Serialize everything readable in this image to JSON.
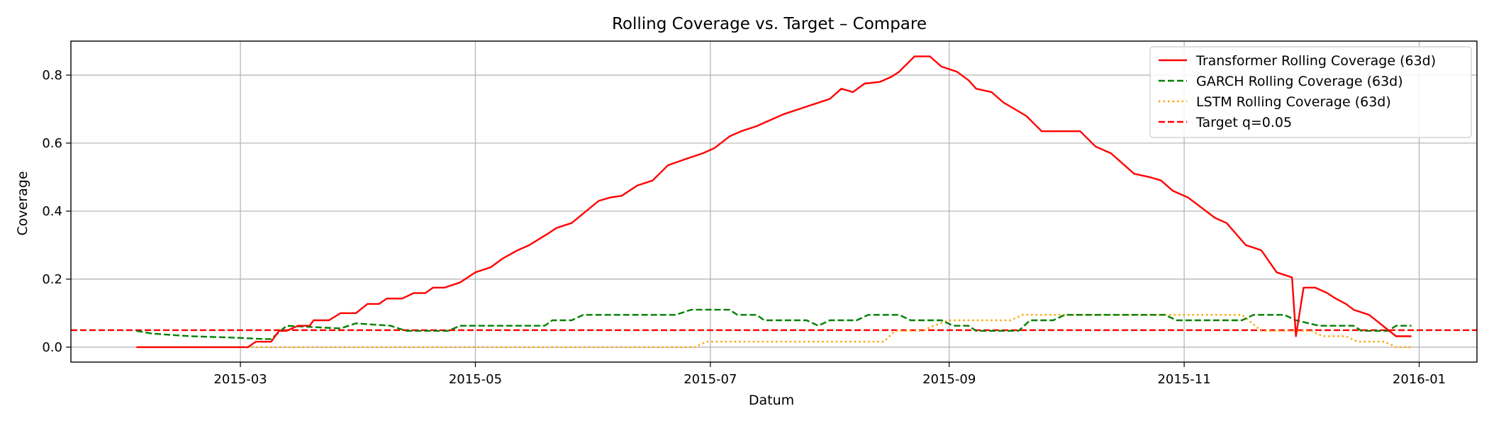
{
  "chart_data": {
    "type": "line",
    "title": "Rolling Coverage vs. Target – Compare",
    "xlabel": "Datum",
    "ylabel": "Coverage",
    "x_ticks": [
      "2015-03",
      "2015-05",
      "2015-07",
      "2015-09",
      "2015-11",
      "2016-01"
    ],
    "y_ticks": [
      "0.0",
      "0.2",
      "0.4",
      "0.6",
      "0.8"
    ],
    "x_range": [
      "2015-01-16",
      "2016-01-16"
    ],
    "ylim": [
      -0.044,
      0.9
    ],
    "grid": true,
    "legend_position": "top-right",
    "colors": {
      "transformer": "#ff0000",
      "garch": "#008000",
      "lstm": "#ffa500",
      "target": "#ff0000"
    },
    "series": [
      {
        "name": "Transformer Rolling Coverage (63d)",
        "key": "transformer",
        "style": "solid",
        "points": [
          [
            "2015-02-02",
            0.0
          ],
          [
            "2015-03-03",
            0.0
          ],
          [
            "2015-03-05",
            0.016
          ],
          [
            "2015-03-09",
            0.016
          ],
          [
            "2015-03-11",
            0.048
          ],
          [
            "2015-03-13",
            0.048
          ],
          [
            "2015-03-16",
            0.063
          ],
          [
            "2015-03-19",
            0.063
          ],
          [
            "2015-03-20",
            0.079
          ],
          [
            "2015-03-24",
            0.079
          ],
          [
            "2015-03-27",
            0.1
          ],
          [
            "2015-03-31",
            0.1
          ],
          [
            "2015-04-03",
            0.127
          ],
          [
            "2015-04-06",
            0.127
          ],
          [
            "2015-04-08",
            0.143
          ],
          [
            "2015-04-12",
            0.143
          ],
          [
            "2015-04-15",
            0.159
          ],
          [
            "2015-04-18",
            0.159
          ],
          [
            "2015-04-20",
            0.175
          ],
          [
            "2015-04-23",
            0.175
          ],
          [
            "2015-04-27",
            0.19
          ],
          [
            "2015-04-29",
            0.205
          ],
          [
            "2015-05-01",
            0.22
          ],
          [
            "2015-05-05",
            0.235
          ],
          [
            "2015-05-08",
            0.26
          ],
          [
            "2015-05-12",
            0.285
          ],
          [
            "2015-05-15",
            0.3
          ],
          [
            "2015-05-20",
            0.335
          ],
          [
            "2015-05-22",
            0.35
          ],
          [
            "2015-05-26",
            0.365
          ],
          [
            "2015-06-02",
            0.43
          ],
          [
            "2015-06-05",
            0.44
          ],
          [
            "2015-06-08",
            0.445
          ],
          [
            "2015-06-12",
            0.475
          ],
          [
            "2015-06-16",
            0.49
          ],
          [
            "2015-06-20",
            0.535
          ],
          [
            "2015-06-25",
            0.555
          ],
          [
            "2015-06-29",
            0.57
          ],
          [
            "2015-07-02",
            0.585
          ],
          [
            "2015-07-06",
            0.62
          ],
          [
            "2015-07-09",
            0.635
          ],
          [
            "2015-07-13",
            0.65
          ],
          [
            "2015-07-17",
            0.67
          ],
          [
            "2015-07-20",
            0.685
          ],
          [
            "2015-07-24",
            0.7
          ],
          [
            "2015-07-28",
            0.715
          ],
          [
            "2015-08-01",
            0.73
          ],
          [
            "2015-08-04",
            0.76
          ],
          [
            "2015-08-07",
            0.75
          ],
          [
            "2015-08-10",
            0.775
          ],
          [
            "2015-08-14",
            0.78
          ],
          [
            "2015-08-17",
            0.795
          ],
          [
            "2015-08-19",
            0.81
          ],
          [
            "2015-08-23",
            0.855
          ],
          [
            "2015-08-27",
            0.855
          ],
          [
            "2015-08-30",
            0.825
          ],
          [
            "2015-09-03",
            0.81
          ],
          [
            "2015-09-06",
            0.785
          ],
          [
            "2015-09-08",
            0.76
          ],
          [
            "2015-09-12",
            0.75
          ],
          [
            "2015-09-15",
            0.72
          ],
          [
            "2015-09-18",
            0.7
          ],
          [
            "2015-09-21",
            0.68
          ],
          [
            "2015-09-25",
            0.635
          ],
          [
            "2015-10-05",
            0.635
          ],
          [
            "2015-10-09",
            0.59
          ],
          [
            "2015-10-13",
            0.57
          ],
          [
            "2015-10-19",
            0.51
          ],
          [
            "2015-10-23",
            0.5
          ],
          [
            "2015-10-26",
            0.49
          ],
          [
            "2015-10-29",
            0.46
          ],
          [
            "2015-11-02",
            0.44
          ],
          [
            "2015-11-09",
            0.38
          ],
          [
            "2015-11-12",
            0.365
          ],
          [
            "2015-11-17",
            0.3
          ],
          [
            "2015-11-21",
            0.285
          ],
          [
            "2015-11-25",
            0.22
          ],
          [
            "2015-11-29",
            0.205
          ],
          [
            "2015-12-02",
            0.175
          ],
          [
            "2015-12-05",
            0.175
          ],
          [
            "2015-12-08",
            0.16
          ],
          [
            "2015-12-10",
            0.145
          ],
          [
            "2015-12-13",
            0.127
          ],
          [
            "2015-12-15",
            0.11
          ],
          [
            "2015-12-19",
            0.095
          ],
          [
            "2015-12-26",
            0.032
          ],
          [
            "2015-11-30",
            0.032
          ],
          [
            "2015-11-30",
            0.032
          ],
          [
            "2015-12-29",
            0.032
          ],
          [
            "2015-12-30",
            0.032
          ]
        ]
      },
      {
        "name": "GARCH Rolling Coverage (63d)",
        "key": "garch",
        "style": "dashed",
        "points": [
          [
            "2015-02-02",
            0.048
          ],
          [
            "2015-02-06",
            0.04
          ],
          [
            "2015-02-16",
            0.032
          ],
          [
            "2015-02-27",
            0.028
          ],
          [
            "2015-03-07",
            0.024
          ],
          [
            "2015-03-09",
            0.024
          ],
          [
            "2015-03-13",
            0.063
          ],
          [
            "2015-03-27",
            0.055
          ],
          [
            "2015-03-31",
            0.07
          ],
          [
            "2015-04-09",
            0.063
          ],
          [
            "2015-04-13",
            0.048
          ],
          [
            "2015-04-24",
            0.048
          ],
          [
            "2015-04-27",
            0.063
          ],
          [
            "2015-05-19",
            0.063
          ],
          [
            "2015-05-21",
            0.079
          ],
          [
            "2015-05-26",
            0.079
          ],
          [
            "2015-05-29",
            0.095
          ],
          [
            "2015-06-22",
            0.095
          ],
          [
            "2015-06-26",
            0.11
          ],
          [
            "2015-07-06",
            0.11
          ],
          [
            "2015-07-08",
            0.095
          ],
          [
            "2015-07-13",
            0.095
          ],
          [
            "2015-07-15",
            0.079
          ],
          [
            "2015-07-26",
            0.079
          ],
          [
            "2015-07-29",
            0.063
          ],
          [
            "2015-08-01",
            0.079
          ],
          [
            "2015-08-08",
            0.079
          ],
          [
            "2015-08-11",
            0.095
          ],
          [
            "2015-08-19",
            0.095
          ],
          [
            "2015-08-22",
            0.079
          ],
          [
            "2015-08-30",
            0.079
          ],
          [
            "2015-09-02",
            0.063
          ],
          [
            "2015-09-06",
            0.063
          ],
          [
            "2015-09-08",
            0.048
          ],
          [
            "2015-09-19",
            0.048
          ],
          [
            "2015-09-22",
            0.079
          ],
          [
            "2015-09-28",
            0.079
          ],
          [
            "2015-10-01",
            0.095
          ],
          [
            "2015-10-27",
            0.095
          ],
          [
            "2015-10-30",
            0.079
          ],
          [
            "2015-11-16",
            0.079
          ],
          [
            "2015-11-19",
            0.095
          ],
          [
            "2015-11-27",
            0.095
          ],
          [
            "2015-11-30",
            0.079
          ],
          [
            "2015-12-06",
            0.063
          ],
          [
            "2015-12-15",
            0.063
          ],
          [
            "2015-12-17",
            0.048
          ],
          [
            "2015-12-24",
            0.048
          ],
          [
            "2015-12-26",
            0.063
          ],
          [
            "2015-12-30",
            0.063
          ]
        ]
      },
      {
        "name": "LSTM Rolling Coverage (63d)",
        "key": "lstm",
        "style": "dotted",
        "points": [
          [
            "2015-02-02",
            0.0
          ],
          [
            "2015-06-27",
            0.0
          ],
          [
            "2015-06-30",
            0.016
          ],
          [
            "2015-08-15",
            0.016
          ],
          [
            "2015-08-18",
            0.048
          ],
          [
            "2015-08-25",
            0.048
          ],
          [
            "2015-08-28",
            0.063
          ],
          [
            "2015-09-01",
            0.079
          ],
          [
            "2015-09-17",
            0.079
          ],
          [
            "2015-09-20",
            0.095
          ],
          [
            "2015-11-16",
            0.095
          ],
          [
            "2015-11-21",
            0.048
          ],
          [
            "2015-12-04",
            0.048
          ],
          [
            "2015-12-07",
            0.032
          ],
          [
            "2015-12-13",
            0.032
          ],
          [
            "2015-12-16",
            0.016
          ],
          [
            "2015-12-23",
            0.016
          ],
          [
            "2015-12-26",
            0.0
          ],
          [
            "2015-12-30",
            0.0
          ]
        ]
      }
    ],
    "target": {
      "name": "Target q=0.05",
      "key": "target",
      "style": "dashed",
      "value": 0.05
    }
  }
}
